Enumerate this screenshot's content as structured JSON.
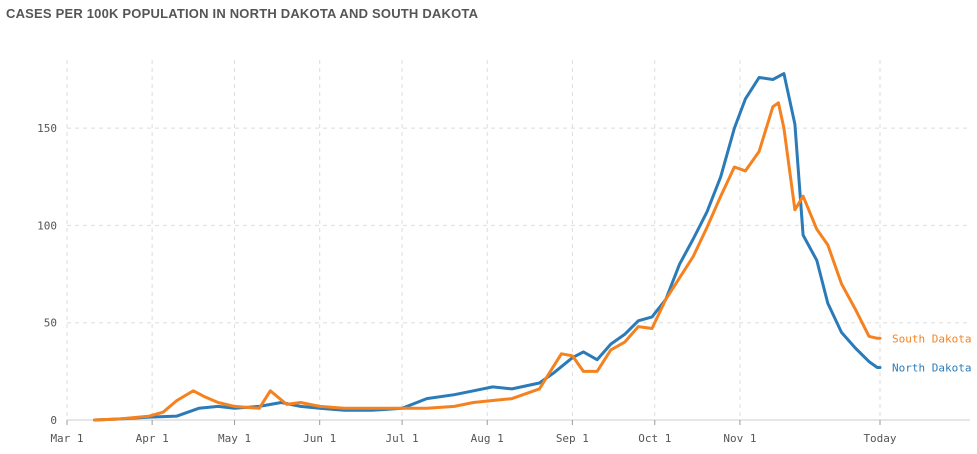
{
  "chart_data": {
    "type": "line",
    "title": "CASES PER 100K POPULATION IN NORTH DAKOTA AND SOUTH DAKOTA",
    "xlabel": "",
    "ylabel": "",
    "x_ticks": [
      "Mar 1",
      "Apr 1",
      "May 1",
      "Jun 1",
      "Jul 1",
      "Aug 1",
      "Sep 1",
      "Oct 1",
      "Nov 1",
      "Today"
    ],
    "y_ticks": [
      "0",
      "50",
      "100",
      "150"
    ],
    "ylim": [
      0,
      185
    ],
    "grid": true,
    "series": [
      {
        "name": "North Dakota",
        "color": "#2b7bb9",
        "x": [
          "Mar 11",
          "Mar 20",
          "Mar 31",
          "Apr 10",
          "Apr 18",
          "Apr 25",
          "May 1",
          "May 10",
          "May 18",
          "May 25",
          "Jun 1",
          "Jun 10",
          "Jun 20",
          "Jul 1",
          "Jul 10",
          "Jul 20",
          "Jul 27",
          "Aug 3",
          "Aug 10",
          "Aug 20",
          "Aug 25",
          "Sep 1",
          "Sep 5",
          "Sep 10",
          "Sep 15",
          "Sep 20",
          "Sep 25",
          "Sep 30",
          "Oct 5",
          "Oct 10",
          "Oct 15",
          "Oct 20",
          "Oct 25",
          "Oct 30",
          "Nov 3",
          "Nov 8",
          "Nov 13",
          "Nov 17",
          "Nov 21",
          "Nov 24",
          "Nov 29",
          "Dec 3",
          "Dec 8",
          "Dec 13",
          "Dec 18",
          "Dec 21",
          "Dec 22"
        ],
        "values": [
          0,
          0.5,
          1.5,
          2,
          6,
          7,
          6,
          7,
          9,
          7,
          6,
          5,
          5,
          6,
          11,
          13,
          15,
          17,
          16,
          19,
          24,
          32,
          35,
          31,
          39,
          44,
          51,
          53,
          62,
          80,
          93,
          107,
          125,
          150,
          165,
          176,
          175,
          178,
          152,
          95,
          82,
          60,
          45,
          37,
          30,
          27,
          27
        ]
      },
      {
        "name": "South Dakota",
        "color": "#f5821f",
        "x": [
          "Mar 11",
          "Mar 20",
          "Mar 31",
          "Apr 5",
          "Apr 10",
          "Apr 16",
          "Apr 20",
          "Apr 25",
          "May 1",
          "May 10",
          "May 14",
          "May 20",
          "May 25",
          "Jun 1",
          "Jun 10",
          "Jun 20",
          "Jul 1",
          "Jul 10",
          "Jul 20",
          "Jul 27",
          "Aug 3",
          "Aug 10",
          "Aug 20",
          "Aug 28",
          "Sep 1",
          "Sep 5",
          "Sep 10",
          "Sep 15",
          "Sep 20",
          "Sep 25",
          "Sep 30",
          "Oct 5",
          "Oct 10",
          "Oct 15",
          "Oct 20",
          "Oct 25",
          "Oct 30",
          "Nov 3",
          "Nov 8",
          "Nov 13",
          "Nov 15",
          "Nov 17",
          "Nov 21",
          "Nov 24",
          "Nov 29",
          "Dec 3",
          "Dec 8",
          "Dec 13",
          "Dec 18",
          "Dec 21",
          "Dec 22"
        ],
        "values": [
          0,
          0.5,
          2,
          4,
          10,
          15,
          12,
          9,
          7,
          6,
          15,
          8,
          9,
          7,
          6,
          6,
          6,
          6,
          7,
          9,
          10,
          11,
          16,
          34,
          33,
          25,
          25,
          36,
          40,
          48,
          47,
          62,
          73,
          84,
          99,
          115,
          130,
          128,
          138,
          161,
          163,
          150,
          108,
          115,
          98,
          90,
          70,
          57,
          43,
          42,
          42
        ]
      }
    ]
  }
}
